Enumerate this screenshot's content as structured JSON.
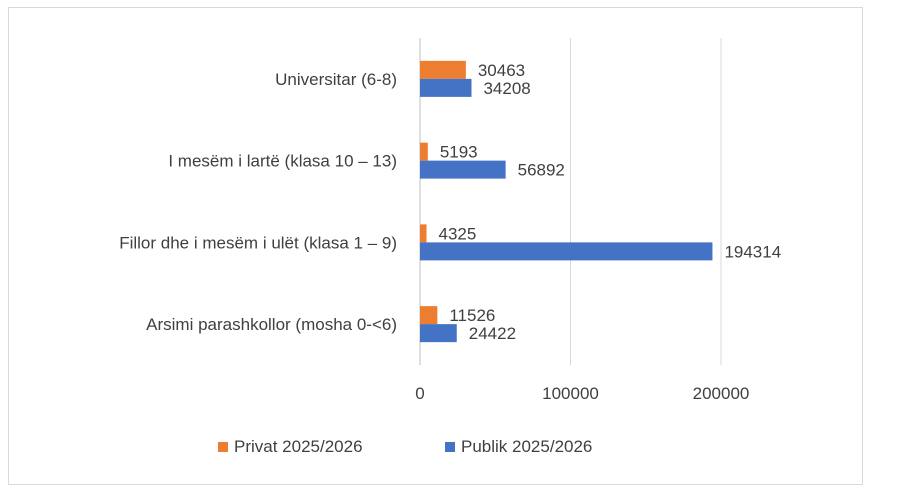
{
  "chart_data": {
    "type": "bar",
    "orientation": "horizontal",
    "categories": [
      "Arsimi parashkollor (mosha 0-<6)",
      "Fillor dhe i mesëm i ulët (klasa 1 – 9)",
      "I mesëm i lartë (klasa 10 – 13)",
      "Universitar (6-8)"
    ],
    "series": [
      {
        "name": "Privat 2025/2026",
        "values": [
          11526,
          4325,
          5193,
          30463
        ],
        "color": "#ED7D31"
      },
      {
        "name": "Publik 2025/2026",
        "values": [
          24422,
          194314,
          56892,
          34208
        ],
        "color": "#4472C4"
      }
    ],
    "xlim": [
      0,
      200000
    ],
    "xticks": [
      0,
      100000,
      200000
    ],
    "xtick_labels": [
      "0",
      "100000",
      "200000"
    ],
    "grid": true,
    "legend_position": "bottom",
    "data_labels": true
  }
}
